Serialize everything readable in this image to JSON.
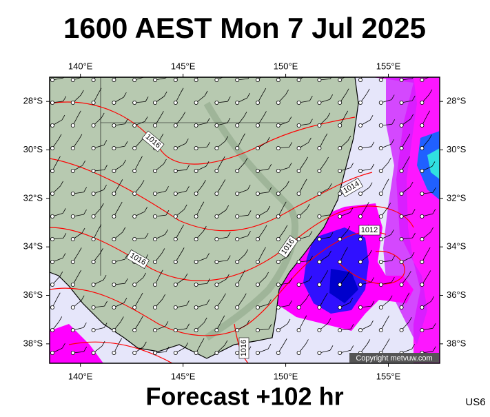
{
  "title": "1600 AEST Mon 7 Jul 2025",
  "footer": "Forecast +102 hr",
  "model": "US6",
  "copyright": "Copyright metvuw.com",
  "map": {
    "lonlim": [
      138.5,
      157.5
    ],
    "latlim": [
      -27,
      -38.8
    ],
    "lonticks": [
      {
        "value": 140,
        "label": "140°E"
      },
      {
        "value": 145,
        "label": "145°E"
      },
      {
        "value": 150,
        "label": "150°E"
      },
      {
        "value": 155,
        "label": "155°E"
      }
    ],
    "latticks": [
      {
        "value": -28,
        "label": "28°S"
      },
      {
        "value": -30,
        "label": "30°S"
      },
      {
        "value": -32,
        "label": "32°S"
      },
      {
        "value": -34,
        "label": "34°S"
      },
      {
        "value": -36,
        "label": "36°S"
      },
      {
        "value": -38,
        "label": "38°S"
      }
    ],
    "isobar_labels": [
      1016,
      1014,
      1012,
      1016,
      1016,
      1016
    ]
  }
}
